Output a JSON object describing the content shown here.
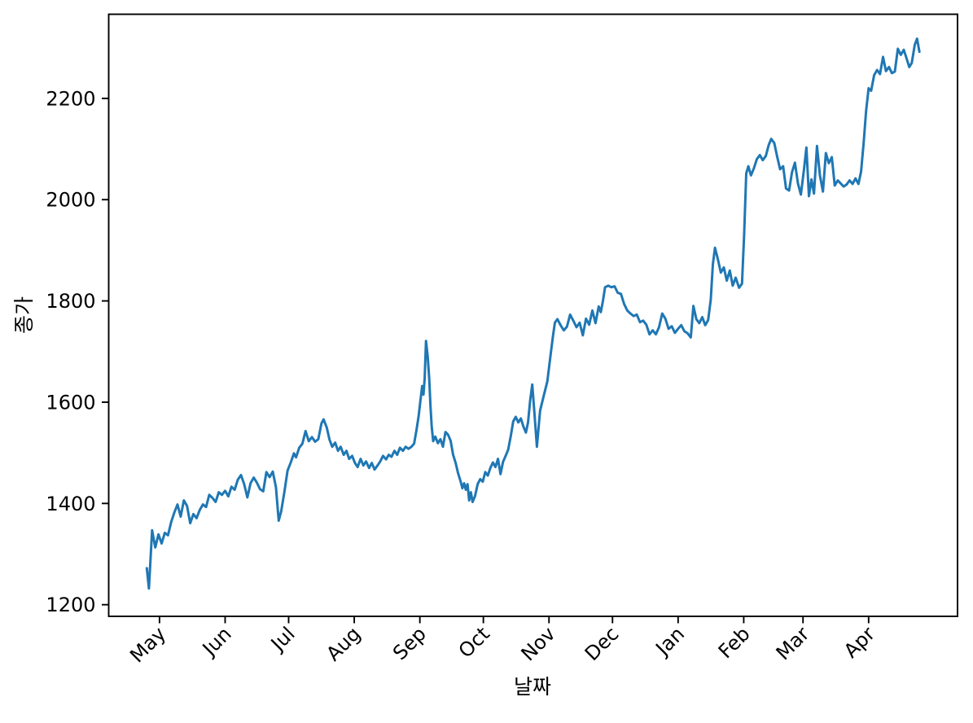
{
  "figure": {
    "background": "#ffffff",
    "frame_color": "#000000"
  },
  "chart_data": {
    "type": "line",
    "title": "",
    "xlabel": "날짜",
    "ylabel": "종가",
    "legend": null,
    "grid": false,
    "line_color": "#1f77b4",
    "line_width": 3,
    "ylim": [
      1177,
      2367
    ],
    "xlim_days": [
      -18,
      383
    ],
    "y_ticks": [
      1200,
      1400,
      1600,
      1800,
      2000,
      2200
    ],
    "x_ticks": [
      {
        "label": "May",
        "day": 6
      },
      {
        "label": "Jun",
        "day": 37
      },
      {
        "label": "Jul",
        "day": 67
      },
      {
        "label": "Aug",
        "day": 98
      },
      {
        "label": "Sep",
        "day": 129
      },
      {
        "label": "Oct",
        "day": 159
      },
      {
        "label": "Nov",
        "day": 190
      },
      {
        "label": "Dec",
        "day": 220
      },
      {
        "label": "Jan",
        "day": 251
      },
      {
        "label": "Feb",
        "day": 282
      },
      {
        "label": "Mar",
        "day": 310
      },
      {
        "label": "Apr",
        "day": 341
      }
    ],
    "series": [
      {
        "name": "종가",
        "points": [
          [
            0,
            1272
          ],
          [
            1,
            1232
          ],
          [
            2.5,
            1347
          ],
          [
            4,
            1313
          ],
          [
            5.5,
            1339
          ],
          [
            7,
            1321
          ],
          [
            8.5,
            1342
          ],
          [
            10,
            1337
          ],
          [
            11.5,
            1363
          ],
          [
            13,
            1382
          ],
          [
            14.5,
            1398
          ],
          [
            16,
            1374
          ],
          [
            17.5,
            1406
          ],
          [
            19,
            1395
          ],
          [
            20.5,
            1361
          ],
          [
            22,
            1379
          ],
          [
            23.5,
            1371
          ],
          [
            25,
            1387
          ],
          [
            26.5,
            1398
          ],
          [
            28,
            1393
          ],
          [
            29.5,
            1417
          ],
          [
            31,
            1411
          ],
          [
            32.5,
            1403
          ],
          [
            34,
            1422
          ],
          [
            35.5,
            1417
          ],
          [
            37,
            1425
          ],
          [
            38.5,
            1414
          ],
          [
            40,
            1433
          ],
          [
            41.5,
            1427
          ],
          [
            43,
            1447
          ],
          [
            44.5,
            1456
          ],
          [
            46,
            1438
          ],
          [
            47.5,
            1412
          ],
          [
            49,
            1440
          ],
          [
            50.5,
            1451
          ],
          [
            52,
            1441
          ],
          [
            53.5,
            1428
          ],
          [
            55,
            1424
          ],
          [
            56.5,
            1462
          ],
          [
            58,
            1452
          ],
          [
            59.5,
            1463
          ],
          [
            61,
            1432
          ],
          [
            62.3,
            1366
          ],
          [
            63.5,
            1385
          ],
          [
            65,
            1423
          ],
          [
            66.5,
            1465
          ],
          [
            68,
            1481
          ],
          [
            69.5,
            1499
          ],
          [
            70.5,
            1491
          ],
          [
            72,
            1510
          ],
          [
            73.5,
            1518
          ],
          [
            75,
            1543
          ],
          [
            76.5,
            1523
          ],
          [
            78,
            1531
          ],
          [
            79.5,
            1522
          ],
          [
            81,
            1527
          ],
          [
            82.5,
            1558
          ],
          [
            83.5,
            1566
          ],
          [
            85,
            1550
          ],
          [
            86.3,
            1526
          ],
          [
            87.6,
            1512
          ],
          [
            89,
            1520
          ],
          [
            90.3,
            1504
          ],
          [
            91.6,
            1512
          ],
          [
            93,
            1496
          ],
          [
            94.3,
            1504
          ],
          [
            95.6,
            1488
          ],
          [
            97,
            1494
          ],
          [
            98.3,
            1480
          ],
          [
            99.6,
            1472
          ],
          [
            101,
            1488
          ],
          [
            102.3,
            1475
          ],
          [
            103.6,
            1483
          ],
          [
            105,
            1470
          ],
          [
            106.3,
            1480
          ],
          [
            107.6,
            1467
          ],
          [
            109,
            1475
          ],
          [
            110.3,
            1483
          ],
          [
            111.6,
            1494
          ],
          [
            113,
            1487
          ],
          [
            114.3,
            1496
          ],
          [
            115.6,
            1492
          ],
          [
            117,
            1504
          ],
          [
            118.3,
            1496
          ],
          [
            119.6,
            1510
          ],
          [
            121,
            1504
          ],
          [
            122.3,
            1512
          ],
          [
            123.6,
            1508
          ],
          [
            125,
            1512
          ],
          [
            126.3,
            1518
          ],
          [
            127.4,
            1545
          ],
          [
            128.4,
            1572
          ],
          [
            129.3,
            1604
          ],
          [
            130.1,
            1632
          ],
          [
            130.7,
            1615
          ],
          [
            131.3,
            1648
          ],
          [
            131.9,
            1721
          ],
          [
            132.7,
            1690
          ],
          [
            133.4,
            1648
          ],
          [
            134,
            1592
          ],
          [
            134.6,
            1552
          ],
          [
            135.3,
            1523
          ],
          [
            136.3,
            1532
          ],
          [
            137.5,
            1519
          ],
          [
            138.7,
            1527
          ],
          [
            139.9,
            1512
          ],
          [
            141.1,
            1541
          ],
          [
            142.3,
            1536
          ],
          [
            143.5,
            1524
          ],
          [
            144.7,
            1496
          ],
          [
            145.9,
            1480
          ],
          [
            147.1,
            1459
          ],
          [
            148.3,
            1443
          ],
          [
            149.1,
            1430
          ],
          [
            149.9,
            1440
          ],
          [
            150.7,
            1427
          ],
          [
            151.5,
            1438
          ],
          [
            152.3,
            1406
          ],
          [
            153.1,
            1422
          ],
          [
            153.9,
            1403
          ],
          [
            155.1,
            1415
          ],
          [
            156.3,
            1438
          ],
          [
            157.5,
            1448
          ],
          [
            158.7,
            1443
          ],
          [
            159.9,
            1462
          ],
          [
            161.1,
            1455
          ],
          [
            162.3,
            1470
          ],
          [
            163.5,
            1481
          ],
          [
            164.7,
            1472
          ],
          [
            165.9,
            1488
          ],
          [
            167.1,
            1458
          ],
          [
            168.3,
            1482
          ],
          [
            169.5,
            1494
          ],
          [
            170.7,
            1506
          ],
          [
            171.9,
            1532
          ],
          [
            173.1,
            1562
          ],
          [
            174.3,
            1571
          ],
          [
            175.5,
            1560
          ],
          [
            176.7,
            1568
          ],
          [
            177.9,
            1552
          ],
          [
            179.1,
            1540
          ],
          [
            180.1,
            1560
          ],
          [
            181.1,
            1603
          ],
          [
            182.1,
            1635
          ],
          [
            183.1,
            1580
          ],
          [
            184.3,
            1512
          ],
          [
            185.8,
            1583
          ],
          [
            187.5,
            1612
          ],
          [
            189.2,
            1641
          ],
          [
            190.6,
            1688
          ],
          [
            191.8,
            1728
          ],
          [
            192.8,
            1757
          ],
          [
            194,
            1764
          ],
          [
            195.5,
            1752
          ],
          [
            197,
            1742
          ],
          [
            198.5,
            1749
          ],
          [
            200,
            1773
          ],
          [
            201.5,
            1761
          ],
          [
            203,
            1748
          ],
          [
            204.5,
            1757
          ],
          [
            206,
            1732
          ],
          [
            207.5,
            1765
          ],
          [
            209,
            1753
          ],
          [
            210.5,
            1781
          ],
          [
            212,
            1756
          ],
          [
            213.5,
            1789
          ],
          [
            214.5,
            1778
          ],
          [
            215.5,
            1800
          ],
          [
            216.5,
            1827
          ],
          [
            218,
            1830
          ],
          [
            219.5,
            1827
          ],
          [
            221,
            1829
          ],
          [
            222.5,
            1816
          ],
          [
            224,
            1814
          ],
          [
            225.5,
            1794
          ],
          [
            227,
            1781
          ],
          [
            228.5,
            1775
          ],
          [
            230,
            1770
          ],
          [
            231.5,
            1773
          ],
          [
            233,
            1758
          ],
          [
            234.5,
            1761
          ],
          [
            236,
            1753
          ],
          [
            237.5,
            1734
          ],
          [
            239,
            1742
          ],
          [
            240.5,
            1734
          ],
          [
            242,
            1748
          ],
          [
            243.5,
            1775
          ],
          [
            245,
            1765
          ],
          [
            246.5,
            1745
          ],
          [
            248,
            1750
          ],
          [
            249.5,
            1737
          ],
          [
            251,
            1745
          ],
          [
            252.5,
            1752
          ],
          [
            254,
            1740
          ],
          [
            255.5,
            1736
          ],
          [
            257,
            1728
          ],
          [
            258.2,
            1790
          ],
          [
            259.6,
            1764
          ],
          [
            261,
            1756
          ],
          [
            262.4,
            1768
          ],
          [
            263.8,
            1752
          ],
          [
            265.2,
            1762
          ],
          [
            266.4,
            1802
          ],
          [
            267.4,
            1872
          ],
          [
            268.4,
            1905
          ],
          [
            269.8,
            1882
          ],
          [
            271.2,
            1856
          ],
          [
            272.6,
            1866
          ],
          [
            274,
            1840
          ],
          [
            275.4,
            1860
          ],
          [
            276.8,
            1830
          ],
          [
            278.2,
            1846
          ],
          [
            279.8,
            1826
          ],
          [
            281.2,
            1834
          ],
          [
            282.2,
            1930
          ],
          [
            283.2,
            2052
          ],
          [
            284.2,
            2066
          ],
          [
            285.4,
            2048
          ],
          [
            286.8,
            2062
          ],
          [
            288.2,
            2080
          ],
          [
            289.6,
            2088
          ],
          [
            291,
            2078
          ],
          [
            292.4,
            2086
          ],
          [
            293.8,
            2108
          ],
          [
            295,
            2120
          ],
          [
            296.4,
            2112
          ],
          [
            297.8,
            2085
          ],
          [
            299.2,
            2060
          ],
          [
            300.6,
            2066
          ],
          [
            302,
            2022
          ],
          [
            303.4,
            2018
          ],
          [
            304.8,
            2054
          ],
          [
            306.2,
            2073
          ],
          [
            307.6,
            2032
          ],
          [
            309,
            2010
          ],
          [
            310.4,
            2058
          ],
          [
            311.6,
            2103
          ],
          [
            312.8,
            2007
          ],
          [
            314,
            2040
          ],
          [
            315.2,
            2012
          ],
          [
            316.6,
            2106
          ],
          [
            318,
            2048
          ],
          [
            319.4,
            2016
          ],
          [
            320.8,
            2092
          ],
          [
            322.2,
            2072
          ],
          [
            323.6,
            2084
          ],
          [
            325,
            2028
          ],
          [
            326.4,
            2038
          ],
          [
            327.8,
            2032
          ],
          [
            329.2,
            2026
          ],
          [
            330.6,
            2030
          ],
          [
            332,
            2038
          ],
          [
            333.4,
            2031
          ],
          [
            334.8,
            2042
          ],
          [
            336.2,
            2031
          ],
          [
            337.4,
            2055
          ],
          [
            338.6,
            2110
          ],
          [
            339.8,
            2175
          ],
          [
            341,
            2220
          ],
          [
            342.2,
            2215
          ],
          [
            343.6,
            2246
          ],
          [
            345,
            2256
          ],
          [
            346.4,
            2248
          ],
          [
            347.8,
            2282
          ],
          [
            349.2,
            2254
          ],
          [
            350.6,
            2262
          ],
          [
            352,
            2250
          ],
          [
            353.4,
            2253
          ],
          [
            354.8,
            2298
          ],
          [
            356.2,
            2286
          ],
          [
            357.6,
            2296
          ],
          [
            359,
            2278
          ],
          [
            360.2,
            2262
          ],
          [
            361.4,
            2270
          ],
          [
            362.8,
            2306
          ],
          [
            363.9,
            2318
          ],
          [
            365,
            2292
          ]
        ]
      }
    ]
  }
}
